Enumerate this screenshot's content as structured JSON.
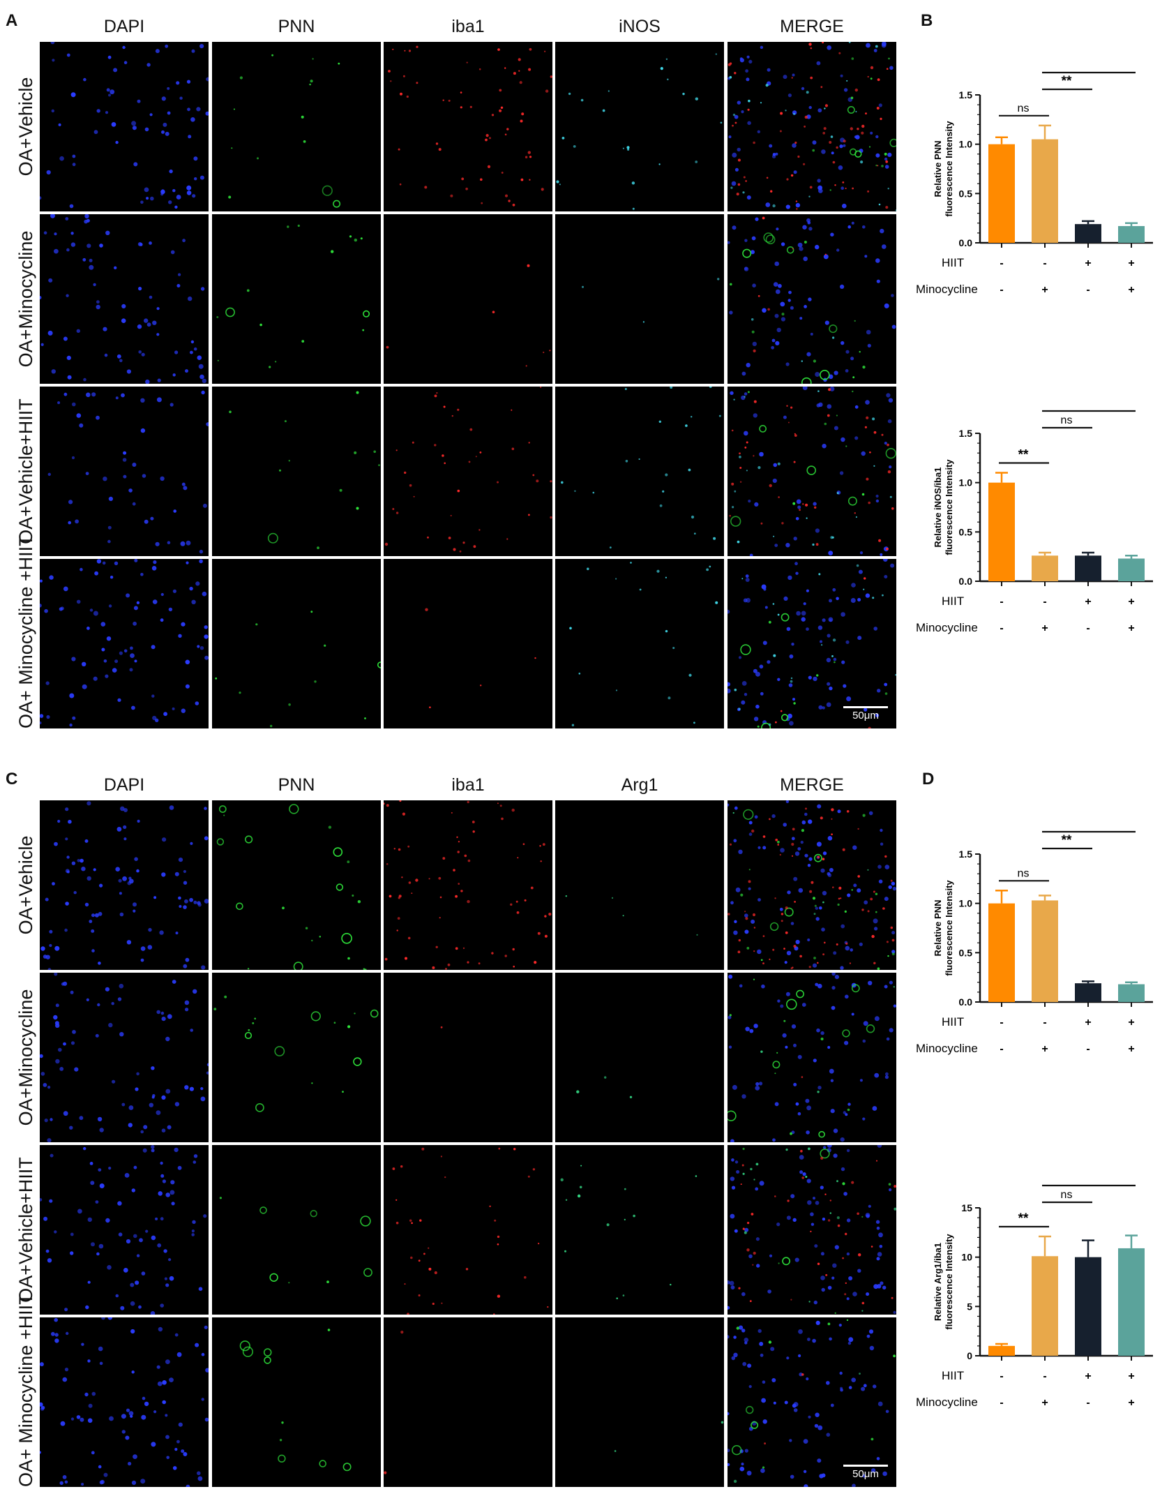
{
  "figure_a": {
    "letter": "A",
    "columns": [
      "DAPI",
      "PNN",
      "iba1",
      "iNOS",
      "MERGE"
    ],
    "rows": [
      "OA+Vehicle",
      "OA+Minocycline",
      "OA+Vehicle+HIIT",
      "OA+ Minocycline +HIIT"
    ],
    "scalebar": "50μm"
  },
  "figure_b": {
    "letter": "B"
  },
  "figure_c": {
    "letter": "C",
    "columns": [
      "DAPI",
      "PNN",
      "iba1",
      "Arg1",
      "MERGE"
    ],
    "rows": [
      "OA+Vehicle",
      "OA+Minocycline",
      "OA+Vehicle+HIIT",
      "OA+ Minocycline +HIIT"
    ],
    "scalebar": "50μm"
  },
  "figure_d": {
    "letter": "D"
  },
  "colors": {
    "orange": "#FF8A00",
    "sand": "#E8A84A",
    "navy": "#16202E",
    "teal": "#5BA39B"
  },
  "chart_data": [
    {
      "id": "B-top",
      "type": "bar",
      "ylabel": "Relative PNN fluorescence Intensity",
      "ylim": [
        0,
        1.5
      ],
      "yticks": [
        "0.0",
        "0.5",
        "1.0",
        "1.5"
      ],
      "values": [
        1.0,
        1.05,
        0.19,
        0.17
      ],
      "errors": [
        0.07,
        0.14,
        0.03,
        0.03
      ],
      "rows": [
        {
          "label": "HIIT",
          "marks": [
            "-",
            "-",
            "+",
            "+"
          ]
        },
        {
          "label": "Minocycline",
          "marks": [
            "-",
            "+",
            "-",
            "+"
          ]
        }
      ],
      "brackets": [
        {
          "from": 0,
          "to": 1,
          "text": "ns"
        },
        {
          "from": 1,
          "to": 2,
          "text": "**"
        },
        {
          "from": 1,
          "to": 3,
          "text": "**"
        }
      ]
    },
    {
      "id": "B-bottom",
      "type": "bar",
      "ylabel": "Relative iNOS/iba1 fluorescence Intensity",
      "ylim": [
        0,
        1.5
      ],
      "yticks": [
        "0.0",
        "0.5",
        "1.0",
        "1.5"
      ],
      "values": [
        1.0,
        0.26,
        0.26,
        0.23
      ],
      "errors": [
        0.1,
        0.03,
        0.03,
        0.03
      ],
      "rows": [
        {
          "label": "HIIT",
          "marks": [
            "-",
            "-",
            "+",
            "+"
          ]
        },
        {
          "label": "Minocycline",
          "marks": [
            "-",
            "+",
            "-",
            "+"
          ]
        }
      ],
      "brackets": [
        {
          "from": 0,
          "to": 1,
          "text": "**"
        },
        {
          "from": 1,
          "to": 2,
          "text": "ns"
        },
        {
          "from": 1,
          "to": 3,
          "text": "ns"
        }
      ]
    },
    {
      "id": "D-top",
      "type": "bar",
      "ylabel": "Relative PNN fluorescence Intensity",
      "ylim": [
        0,
        1.5
      ],
      "yticks": [
        "0.0",
        "0.5",
        "1.0",
        "1.5"
      ],
      "values": [
        1.0,
        1.03,
        0.19,
        0.18
      ],
      "errors": [
        0.13,
        0.05,
        0.02,
        0.02
      ],
      "rows": [
        {
          "label": "HIIT",
          "marks": [
            "-",
            "-",
            "+",
            "+"
          ]
        },
        {
          "label": "Minocycline",
          "marks": [
            "-",
            "+",
            "-",
            "+"
          ]
        }
      ],
      "brackets": [
        {
          "from": 0,
          "to": 1,
          "text": "ns"
        },
        {
          "from": 1,
          "to": 2,
          "text": "**"
        },
        {
          "from": 1,
          "to": 3,
          "text": "**"
        }
      ]
    },
    {
      "id": "D-bottom",
      "type": "bar",
      "ylabel": "Relative Arg1/iba1 fluorescence Intensity",
      "ylim": [
        0,
        15
      ],
      "yticks": [
        "0",
        "5",
        "10",
        "15"
      ],
      "values": [
        1.0,
        10.1,
        10.0,
        10.9
      ],
      "errors": [
        0.2,
        2.0,
        1.7,
        1.3
      ],
      "rows": [
        {
          "label": "HIIT",
          "marks": [
            "-",
            "-",
            "+",
            "+"
          ]
        },
        {
          "label": "Minocycline",
          "marks": [
            "-",
            "+",
            "-",
            "+"
          ]
        }
      ],
      "brackets": [
        {
          "from": 0,
          "to": 1,
          "text": "**"
        },
        {
          "from": 1,
          "to": 2,
          "text": "ns"
        },
        {
          "from": 1,
          "to": 3,
          "text": "ns"
        }
      ]
    }
  ]
}
